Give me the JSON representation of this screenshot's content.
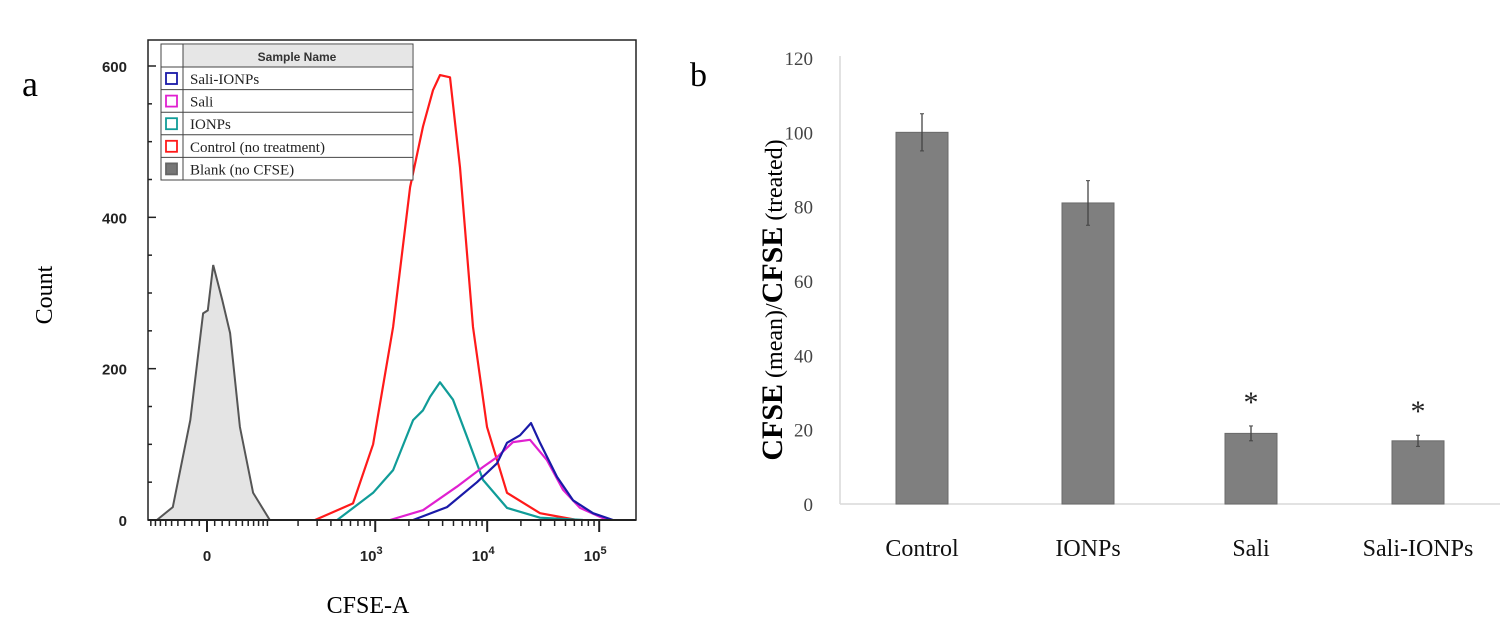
{
  "chart_data": [
    {
      "panel_label": "a",
      "type": "line",
      "title": "",
      "xlabel": "CFSE-A",
      "ylabel": "Count",
      "x_scale": "biexponential",
      "x_ticks": [
        {
          "value": 0,
          "label": "0"
        },
        {
          "value": 1000,
          "label": "10",
          "exp": "3"
        },
        {
          "value": 10000,
          "label": "10",
          "exp": "4"
        },
        {
          "value": 100000,
          "label": "10",
          "exp": "5"
        }
      ],
      "y_ticks": [
        0,
        200,
        400,
        600
      ],
      "ylim": [
        0,
        600
      ],
      "legend": {
        "placement": "top-left",
        "header": "Sample Name",
        "entries": [
          "Sali-IONPs",
          "Sali",
          "IONPs",
          "Control (no treatment)",
          "Blank (no CFSE)"
        ]
      },
      "series": [
        {
          "name": "Sali-IONPs",
          "color": "#1a1aa8",
          "filled": false,
          "points": [
            [
              2180,
              0
            ],
            [
              4380,
              17
            ],
            [
              8110,
              50
            ],
            [
              12230,
              75
            ],
            [
              15040,
              102
            ],
            [
              19650,
              112
            ],
            [
              24620,
              128
            ],
            [
              29600,
              102
            ],
            [
              42020,
              57
            ],
            [
              58400,
              26
            ],
            [
              87980,
              9
            ],
            [
              132800,
              0
            ]
          ]
        },
        {
          "name": "Sali",
          "color": "#e020d0",
          "filled": false,
          "points": [
            [
              1355,
              0
            ],
            [
              2670,
              13
            ],
            [
              5370,
              44
            ],
            [
              9170,
              70
            ],
            [
              12230,
              83
            ],
            [
              16990,
              103
            ],
            [
              24120,
              106
            ],
            [
              34200,
              79
            ],
            [
              47560,
              40
            ],
            [
              67350,
              16
            ],
            [
              117300,
              0
            ]
          ]
        },
        {
          "name": "IONPs",
          "color": "#109c98",
          "filled": false,
          "points": [
            [
              456,
              0
            ],
            [
              956,
              36
            ],
            [
              1443,
              66
            ],
            [
              2180,
              132
            ],
            [
              2670,
              145
            ],
            [
              3090,
              163
            ],
            [
              3790,
              182
            ],
            [
              4950,
              159
            ],
            [
              6600,
              110
            ],
            [
              9170,
              53
            ],
            [
              15040,
              16
            ],
            [
              29600,
              3
            ],
            [
              71660,
              0
            ]
          ]
        },
        {
          "name": "Control (no treatment)",
          "color": "#ff1a1a",
          "filled": false,
          "points": [
            [
              287,
              0
            ],
            [
              632,
              22
            ],
            [
              956,
              100
            ],
            [
              1443,
              255
            ],
            [
              2048,
              440
            ],
            [
              2672,
              520
            ],
            [
              3283,
              568
            ],
            [
              3787,
              588
            ],
            [
              4656,
              585
            ],
            [
              5720,
              466
            ],
            [
              7472,
              255
            ],
            [
              9967,
              123
            ],
            [
              15026,
              36
            ],
            [
              29600,
              9
            ],
            [
              63400,
              0
            ]
          ]
        },
        {
          "name": "Blank (no CFSE)",
          "color": "#555555",
          "fill": "#e4e4e4",
          "filled": true,
          "points": [
            [
              -77,
              0
            ],
            [
              -48,
              17
            ],
            [
              -22,
              132
            ],
            [
              -5,
              273
            ],
            [
              1,
              277
            ],
            [
              8,
              337
            ],
            [
              20,
              291
            ],
            [
              31,
              247
            ],
            [
              46,
              123
            ],
            [
              69,
              36
            ],
            [
              106,
              0
            ]
          ]
        }
      ]
    },
    {
      "panel_label": "b",
      "type": "bar",
      "title": "",
      "xlabel": "",
      "ylabel_parts": [
        {
          "text": "CFSE",
          "bold": true
        },
        {
          "text": " (mean)/",
          "bold": false
        },
        {
          "text": "CFSE",
          "bold": true
        },
        {
          "text": " (treated)",
          "bold": false
        }
      ],
      "categories": [
        "Control",
        "IONPs",
        "Sali",
        "Sali-IONPs"
      ],
      "values": [
        100,
        81,
        19,
        17
      ],
      "errors": [
        5,
        6,
        2,
        1.5
      ],
      "annotations": [
        "",
        "",
        "*",
        "*"
      ],
      "bar_color": "#7f7f7f",
      "y_ticks": [
        0,
        20,
        40,
        60,
        80,
        100,
        120
      ],
      "ylim": [
        0,
        120
      ],
      "grid": false
    }
  ]
}
